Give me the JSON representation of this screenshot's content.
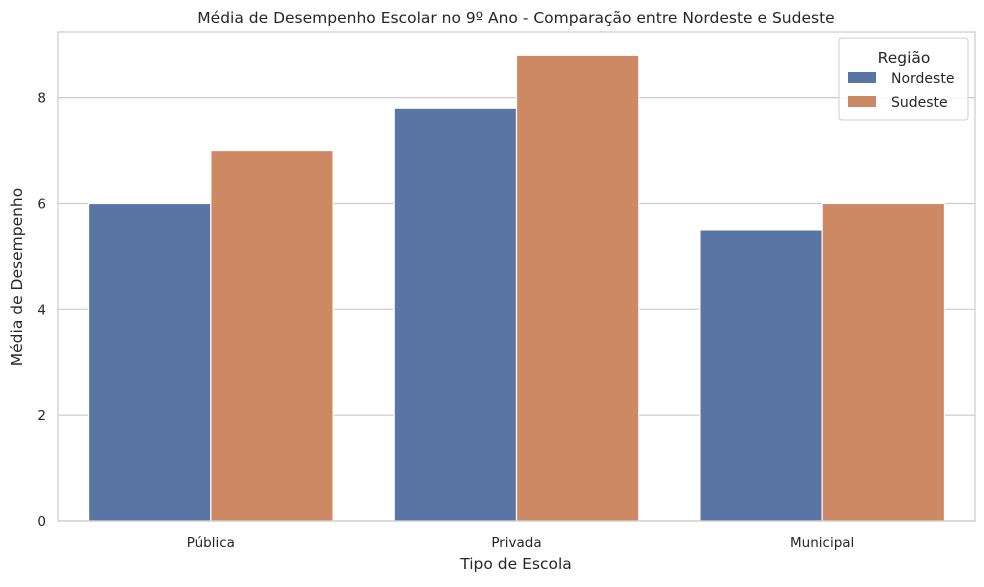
{
  "chart_data": {
    "type": "bar",
    "title": "Média de Desempenho Escolar no 9º Ano - Comparação entre Nordeste e Sudeste",
    "xlabel": "Tipo de Escola",
    "ylabel": "Média de Desempenho",
    "categories": [
      "Pública",
      "Privada",
      "Municipal"
    ],
    "series": [
      {
        "name": "Nordeste",
        "values": [
          6.0,
          7.8,
          5.5
        ],
        "color": "#5975a4"
      },
      {
        "name": "Sudeste",
        "values": [
          7.0,
          8.8,
          6.0
        ],
        "color": "#cc8963"
      }
    ],
    "ylim": [
      0,
      9.24
    ],
    "yticks": [
      "0",
      "2",
      "4",
      "6",
      "8"
    ],
    "grid": "horizontal",
    "legend": {
      "title": "Região",
      "placement": "top-right"
    }
  }
}
